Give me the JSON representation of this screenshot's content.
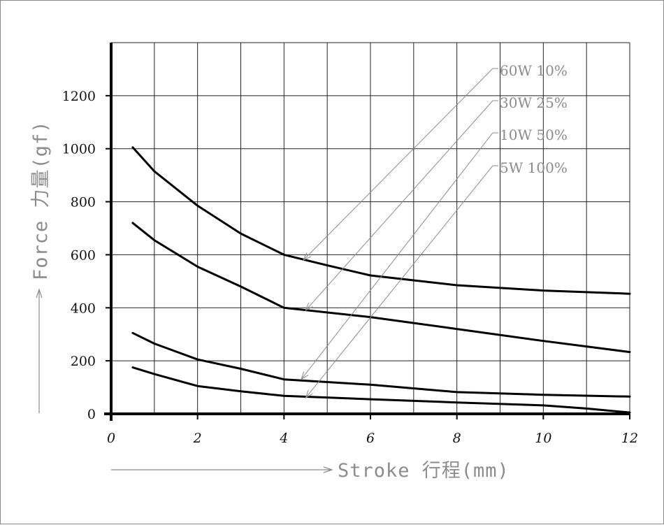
{
  "chart_data": {
    "type": "line",
    "xlabel": "Stroke 行程(mm)",
    "ylabel": "Force 力量(gf)",
    "xlim": [
      0,
      12
    ],
    "ylim": [
      0,
      1400
    ],
    "x_ticks": [
      "0",
      "2",
      "4",
      "6",
      "8",
      "10",
      "12"
    ],
    "y_ticks": [
      "0",
      "200",
      "400",
      "600",
      "800",
      "1000",
      "1200"
    ],
    "grid": true,
    "series": [
      {
        "name": "60W 10%",
        "x": [
          0.5,
          1,
          2,
          3,
          4,
          5,
          6,
          8,
          10,
          12
        ],
        "y": [
          1005,
          915,
          785,
          680,
          600,
          560,
          522,
          485,
          465,
          453
        ]
      },
      {
        "name": "30W 25%",
        "x": [
          0.5,
          1,
          2,
          3,
          4,
          6,
          8,
          10,
          12
        ],
        "y": [
          720,
          655,
          555,
          480,
          400,
          365,
          320,
          275,
          233
        ]
      },
      {
        "name": "10W 50%",
        "x": [
          0.5,
          1,
          2,
          3,
          4,
          6,
          8,
          10,
          12
        ],
        "y": [
          305,
          265,
          205,
          170,
          130,
          110,
          82,
          72,
          65
        ]
      },
      {
        "name": "5W 100%",
        "x": [
          0.5,
          1,
          2,
          3,
          4,
          6,
          8,
          10,
          11,
          12
        ],
        "y": [
          175,
          150,
          105,
          85,
          68,
          55,
          43,
          32,
          20,
          5
        ]
      }
    ]
  }
}
